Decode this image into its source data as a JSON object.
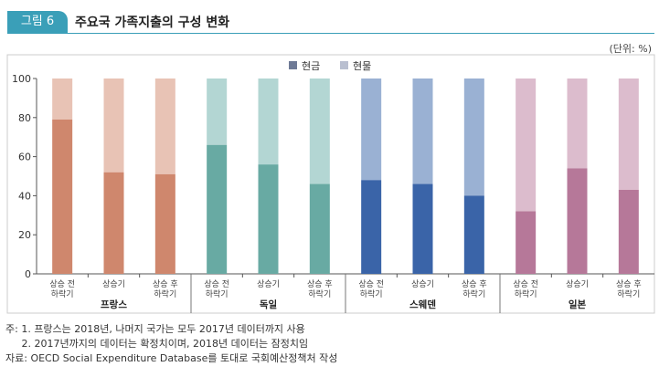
{
  "header": {
    "badge": "그림 6",
    "title": "주요국 가족지출의 구성 변화",
    "unit": "(단위: %)"
  },
  "chart_data": {
    "type": "bar",
    "stacked": true,
    "legend": [
      {
        "name": "현금",
        "color": "#6e7a96"
      },
      {
        "name": "현물",
        "color": "#b9bfd0"
      }
    ],
    "legend_placement": "top-center",
    "ylim": [
      0,
      100
    ],
    "yticks": [
      0,
      20,
      40,
      60,
      80,
      100
    ],
    "grid": false,
    "groups": [
      {
        "name": "프랑스",
        "cash_color": "#cf876d",
        "inkind_color": "#e8c3b5",
        "categories": [
          "상승 전\n하락기",
          "상승기",
          "상승 후\n하락기"
        ],
        "cash": [
          79,
          52,
          51
        ],
        "inkind": [
          21,
          48,
          49
        ]
      },
      {
        "name": "독일",
        "cash_color": "#68aaa3",
        "inkind_color": "#b3d6d3",
        "categories": [
          "상승 전\n하락기",
          "상승기",
          "상승 후\n하락기"
        ],
        "cash": [
          66,
          56,
          46
        ],
        "inkind": [
          34,
          44,
          54
        ]
      },
      {
        "name": "스웨덴",
        "cash_color": "#3a64a8",
        "inkind_color": "#9ab1d3",
        "categories": [
          "상승 전\n하락기",
          "상승기",
          "상승 후\n하락기"
        ],
        "cash": [
          48,
          46,
          40
        ],
        "inkind": [
          52,
          54,
          60
        ]
      },
      {
        "name": "일본",
        "cash_color": "#b67899",
        "inkind_color": "#dcbccd",
        "categories": [
          "상승 전\n하락기",
          "상승기",
          "상승 후\n하락기"
        ],
        "cash": [
          32,
          54,
          43
        ],
        "inkind": [
          68,
          46,
          57
        ]
      }
    ]
  },
  "notes": [
    "주: 1. 프랑스는 2018년, 나머지 국가는 모두 2017년 데이터까지 사용",
    "     2. 2017년까지의 데이터는 확정치이며, 2018년 데이터는 잠정치임",
    "자료: OECD Social Expenditure Database를 토대로 국회예산정책처 작성"
  ]
}
